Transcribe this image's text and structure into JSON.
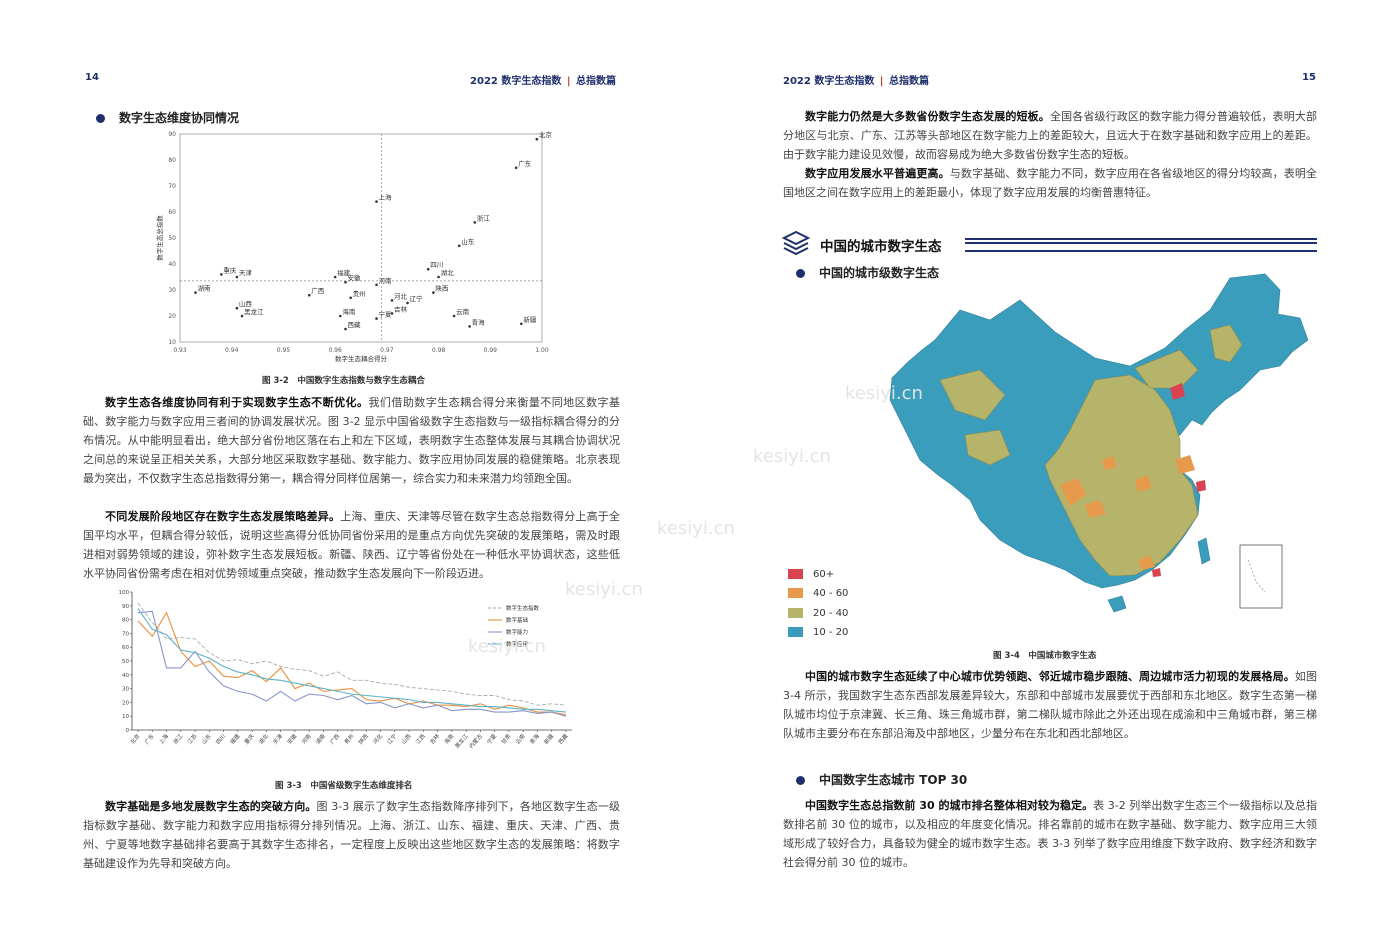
{
  "left_page": {
    "page_number": "14",
    "running_header": {
      "title": "2022 数字生态指数",
      "section": "总指数篇"
    },
    "section_title": "数字生态维度协同情况",
    "figure1_caption": "图 3-2　中国数字生态指数与数字生态耦合",
    "para1": {
      "bold": "数字生态各维度协同有利于实现数字生态不断优化。",
      "text": "我们借助数字生态耦合得分来衡量不同地区数字基础、数字能力与数字应用三者间的协调发展状况。图 3-2 显示中国省级数字生态指数与一级指标耦合得分的分布情况。从中能明显看出，绝大部分省份地区落在右上和左下区域，表明数字生态整体发展与其耦合协调状况之间总的来说呈正相关关系，大部分地区采取数字基础、数字能力、数字应用协同发展的稳健策略。北京表现最为突出，不仅数字生态总指数得分第一，耦合得分同样位居第一，综合实力和未来潜力均领跑全国。"
    },
    "para2": {
      "bold": "不同发展阶段地区存在数字生态发展策略差异。",
      "text": "上海、重庆、天津等尽管在数字生态总指数得分上高于全国平均水平，但耦合得分较低，说明这些高得分低协同省份采用的是重点方向优先突破的发展策略，需及时跟进相对弱势领域的建设，弥补数字生态发展短板。新疆、陕西、辽宁等省份处在一种低水平协调状态，这些低水平协同省份需考虑在相对优势领域重点突破，推动数字生态发展向下一阶段迈进。"
    },
    "figure2_caption": "图 3-3　中国省级数字生态维度排名",
    "para3": {
      "bold": "数字基础是多地发展数字生态的突破方向。",
      "text": "图 3-3 展示了数字生态指数降序排列下，各地区数字生态一级指标数字基础、数字能力和数字应用指标得分排列情况。上海、浙江、山东、福建、重庆、天津、广西、贵州、宁夏等地数字基础排名要高于其数字生态排名，一定程度上反映出这些地区数字生态的发展策略：将数字基础建设作为先导和突破方向。"
    }
  },
  "right_page": {
    "page_number": "15",
    "running_header": {
      "title": "2022 数字生态指数",
      "section": "总指数篇"
    },
    "para1": {
      "bold": "数字能力仍然是大多数省份数字生态发展的短板。",
      "text": "全国各省级行政区的数字能力得分普遍较低，表明大部分地区与北京、广东、江苏等头部地区在数字能力上的差距较大，且远大于在数字基础和数字应用上的差距。由于数字能力建设见效慢，故而容易成为绝大多数省份数字生态的短板。"
    },
    "para2": {
      "bold": "数字应用发展水平普遍更高。",
      "text": "与数字基础、数字能力不同，数字应用在各省级地区的得分均较高，表明全国地区之间在数字应用上的差距最小，体现了数字应用发展的均衡普惠特征。"
    },
    "chapter_title": "中国的城市数字生态",
    "section_title": "中国的城市级数字生态",
    "map_legend": [
      {
        "label": "60+",
        "color": "#d9434f"
      },
      {
        "label": "40 - 60",
        "color": "#e89a4c"
      },
      {
        "label": "20 - 40",
        "color": "#b5b46a"
      },
      {
        "label": "10 - 20",
        "color": "#3a9dbb"
      }
    ],
    "map_caption": "图 3-4　中国城市数字生态",
    "para3": {
      "bold": "中国的城市数字生态延续了中心城市优势领跑、邻近城市稳步跟随、周边城市活力初现的发展格局。",
      "text": "如图 3-4 所示，我国数字生态东西部发展差异较大，东部和中部城市发展要优于西部和东北地区。数字生态第一梯队城市均位于京津冀、长三角、珠三角城市群，第二梯队城市除此之外还出现在成渝和中三角城市群，第三梯队城市主要分布在东部沿海及中部地区，少量分布在东北和西北部地区。"
    },
    "section2_title": "中国数字生态城市 TOP 30",
    "para4": {
      "bold": "中国数字生态总指数前 30 的城市排名整体相对较为稳定。",
      "text": "表 3-2 列举出数字生态三个一级指标以及总指数排名前 30 位的城市，以及相应的年度变化情况。排名靠前的城市在数字基础、数字能力、数字应用三大领域形成了较好合力，具备较为健全的城市数字生态。表 3-3 列举了数字应用维度下数字政府、数字经济和数字社会得分前 30 位的城市。"
    }
  },
  "watermarks": [
    "kesiyi.cn",
    "kesiyi.cn",
    "kesiyi.cn",
    "kesiyi.cn",
    "kesiyi.cn"
  ],
  "chart_data": [
    {
      "type": "scatter",
      "title": "",
      "xlabel": "数字生态耦合得分",
      "ylabel": "数字生态总指数",
      "xlim": [
        0.93,
        1.0
      ],
      "ylim": [
        10,
        90
      ],
      "xticks": [
        "0.93",
        "0.94",
        "0.95",
        "0.96",
        "0.97",
        "0.98",
        "0.99",
        "1.00"
      ],
      "yticks": [
        "90",
        "80",
        "70",
        "60",
        "50",
        "40",
        "30",
        "20",
        "10"
      ],
      "reference_lines": {
        "x": 0.969,
        "y": 33.5
      },
      "points": [
        {
          "label": "北京",
          "x": 0.999,
          "y": 88
        },
        {
          "label": "广东",
          "x": 0.995,
          "y": 77
        },
        {
          "label": "上海",
          "x": 0.968,
          "y": 64
        },
        {
          "label": "浙江",
          "x": 0.987,
          "y": 56
        },
        {
          "label": "山东",
          "x": 0.984,
          "y": 47
        },
        {
          "label": "四川",
          "x": 0.978,
          "y": 38
        },
        {
          "label": "湖北",
          "x": 0.98,
          "y": 35
        },
        {
          "label": "福建",
          "x": 0.96,
          "y": 35
        },
        {
          "label": "安徽",
          "x": 0.962,
          "y": 33
        },
        {
          "label": "河南",
          "x": 0.968,
          "y": 32
        },
        {
          "label": "重庆",
          "x": 0.938,
          "y": 36
        },
        {
          "label": "天津",
          "x": 0.941,
          "y": 35
        },
        {
          "label": "湖南",
          "x": 0.933,
          "y": 29
        },
        {
          "label": "广西",
          "x": 0.955,
          "y": 28
        },
        {
          "label": "贵州",
          "x": 0.963,
          "y": 27
        },
        {
          "label": "陕西",
          "x": 0.979,
          "y": 29
        },
        {
          "label": "河北",
          "x": 0.971,
          "y": 26
        },
        {
          "label": "辽宁",
          "x": 0.974,
          "y": 25
        },
        {
          "label": "山西",
          "x": 0.941,
          "y": 23
        },
        {
          "label": "黑龙江",
          "x": 0.942,
          "y": 20
        },
        {
          "label": "海南",
          "x": 0.961,
          "y": 20
        },
        {
          "label": "吉林",
          "x": 0.971,
          "y": 21
        },
        {
          "label": "宁夏",
          "x": 0.968,
          "y": 19
        },
        {
          "label": "云南",
          "x": 0.983,
          "y": 20
        },
        {
          "label": "西藏",
          "x": 0.962,
          "y": 15
        },
        {
          "label": "青海",
          "x": 0.986,
          "y": 16
        },
        {
          "label": "新疆",
          "x": 0.996,
          "y": 17
        }
      ]
    },
    {
      "type": "line",
      "title": "",
      "xlabel": "",
      "ylabel": "",
      "ylim": [
        0,
        100
      ],
      "yticks": [
        "100",
        "90",
        "80",
        "70",
        "60",
        "50",
        "40",
        "30",
        "20",
        "10",
        "0"
      ],
      "categories": [
        "北京",
        "广东",
        "上海",
        "浙江",
        "江苏",
        "山东",
        "四川",
        "福建",
        "重庆",
        "湖北",
        "天津",
        "安徽",
        "河南",
        "湖南",
        "广西",
        "贵州",
        "陕西",
        "河北",
        "辽宁",
        "山西",
        "江西",
        "吉林",
        "海南",
        "黑龙江",
        "内蒙古",
        "宁夏",
        "甘肃",
        "云南",
        "青海",
        "新疆",
        "西藏"
      ],
      "series": [
        {
          "name": "数字生态指数",
          "color": "#aaaaaa",
          "dash": true,
          "values": [
            92,
            78,
            66,
            67,
            66,
            56,
            50,
            51,
            48,
            50,
            46,
            44,
            43,
            39,
            42,
            36,
            36,
            34,
            33,
            31,
            30,
            29,
            28,
            26,
            25,
            25,
            22,
            21,
            18,
            19,
            18
          ]
        },
        {
          "name": "数字基础",
          "color": "#e98f3c",
          "dash": false,
          "values": [
            79,
            68,
            85,
            57,
            46,
            50,
            39,
            38,
            43,
            35,
            45,
            30,
            34,
            28,
            29,
            30,
            22,
            21,
            23,
            19,
            21,
            18,
            18,
            17,
            19,
            15,
            18,
            16,
            13,
            13,
            11
          ]
        },
        {
          "name": "数字能力",
          "color": "#8a95c9",
          "dash": false,
          "values": [
            85,
            86,
            45,
            45,
            57,
            42,
            32,
            28,
            26,
            21,
            28,
            21,
            26,
            25,
            22,
            25,
            19,
            20,
            16,
            19,
            16,
            18,
            14,
            15,
            15,
            13,
            13,
            14,
            12,
            13,
            10
          ]
        },
        {
          "name": "数字应用",
          "color": "#5db3c9",
          "dash": false,
          "values": [
            88,
            73,
            69,
            58,
            56,
            52,
            46,
            42,
            40,
            37,
            36,
            34,
            32,
            30,
            28,
            26,
            25,
            24,
            23,
            22,
            20,
            20,
            19,
            18,
            17,
            17,
            16,
            15,
            15,
            14,
            13
          ]
        }
      ]
    }
  ]
}
